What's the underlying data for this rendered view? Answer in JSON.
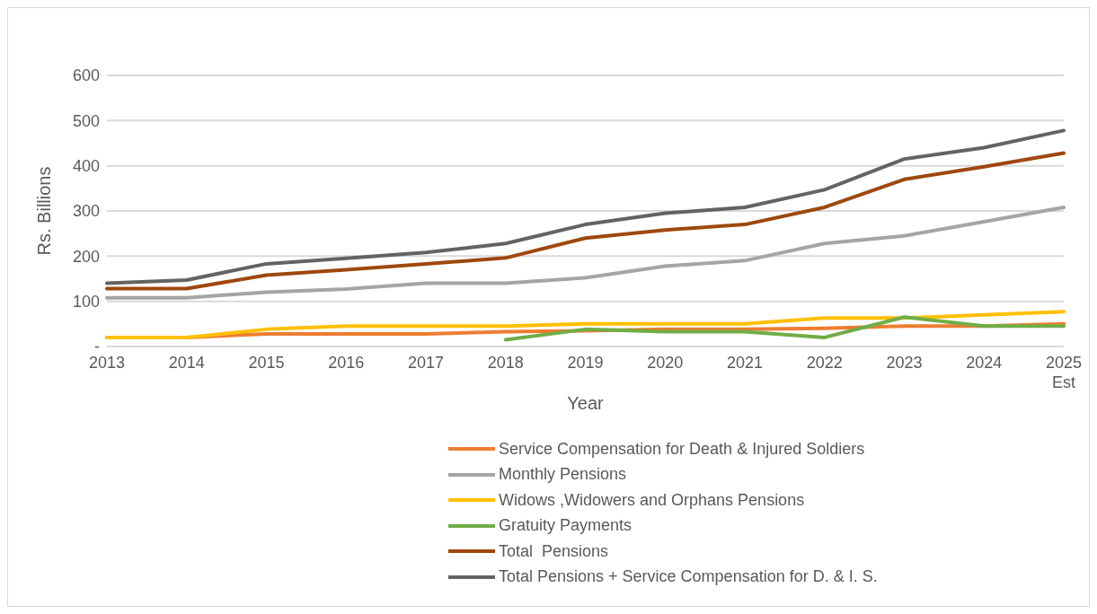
{
  "chart_data": {
    "type": "line",
    "xlabel": "Year",
    "ylabel": "Rs. Billions",
    "categories": [
      "2013",
      "2014",
      "2015",
      "2016",
      "2017",
      "2018",
      "2019",
      "2020",
      "2021",
      "2022",
      "2023",
      "2024",
      "2025\nEst"
    ],
    "series": [
      {
        "name": "Service Compensation for Death & Injured Soldiers",
        "color": "#ed7d31",
        "values": [
          20,
          20,
          28,
          28,
          28,
          33,
          35,
          38,
          38,
          40,
          45,
          45,
          50
        ]
      },
      {
        "name": "Monthly Pensions",
        "color": "#a5a5a5",
        "values": [
          108,
          108,
          120,
          127,
          140,
          140,
          152,
          178,
          190,
          228,
          245,
          276,
          308
        ]
      },
      {
        "name": "Widows ,Widowers and Orphans Pensions",
        "color": "#ffc000",
        "values": [
          20,
          20,
          38,
          45,
          45,
          45,
          50,
          50,
          50,
          63,
          63,
          70,
          77
        ]
      },
      {
        "name": "Gratuity Payments",
        "color": "#70ad47",
        "values": [
          null,
          null,
          null,
          null,
          null,
          15,
          38,
          33,
          33,
          20,
          65,
          45,
          45
        ]
      },
      {
        "name": "Total  Pensions",
        "color": "#9e480e",
        "values": [
          128,
          128,
          158,
          170,
          183,
          196,
          240,
          258,
          270,
          308,
          370,
          398,
          428
        ]
      },
      {
        "name": "Total Pensions + Service Compensation for D. & I. S.",
        "color": "#636363",
        "values": [
          140,
          147,
          183,
          195,
          208,
          228,
          270,
          295,
          308,
          347,
          415,
          440,
          478
        ]
      }
    ],
    "ylim": [
      0,
      600
    ],
    "yticks": [
      {
        "value": 0,
        "label": "-"
      },
      100,
      200,
      300,
      400,
      500,
      600
    ],
    "grid": "y",
    "legend": "bottom",
    "marker": "none",
    "line_style": "solid"
  }
}
